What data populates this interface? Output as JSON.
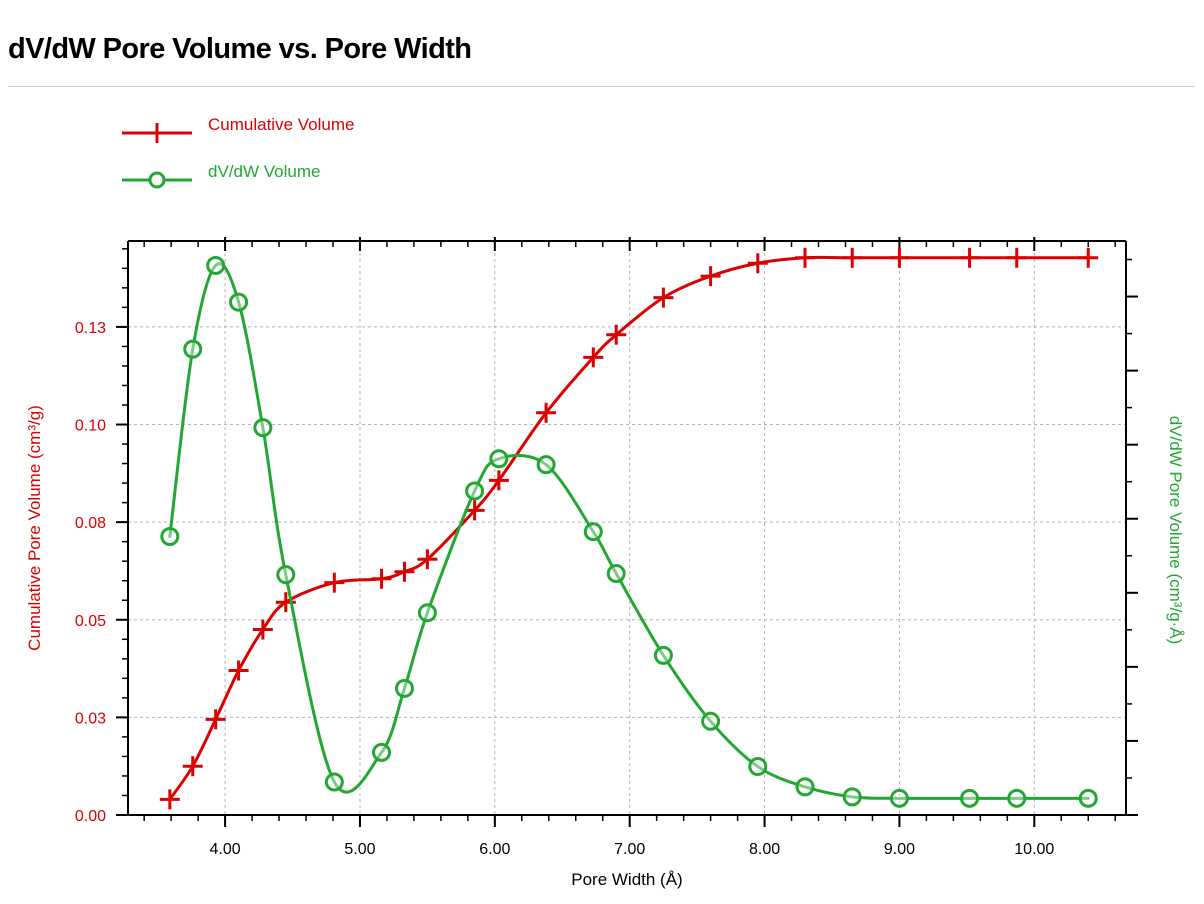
{
  "page": {
    "title": "dV/dW Pore Volume vs. Pore Width"
  },
  "chart_data": {
    "type": "line",
    "title": "dV/dW Pore Volume vs. Pore Width",
    "xlabel": "Pore Width (Å)",
    "ylabel_left": "Cumulative Pore Volume (cm³/g)",
    "ylabel_right": "dV/dW Pore Volume (cm³/g·Å)",
    "xlim": [
      3.28,
      10.68
    ],
    "ylim_left": [
      0.0,
      0.147
    ],
    "ylim_right": [
      0.0,
      0.155
    ],
    "grid": true,
    "legend_position": "top-left",
    "x_ticks": [
      "4.00",
      "5.00",
      "6.00",
      "7.00",
      "8.00",
      "9.00",
      "10.00"
    ],
    "x_tick_values": [
      4,
      5,
      6,
      7,
      8,
      9,
      10
    ],
    "y_left_ticks": [
      "0.00",
      "0.03",
      "0.05",
      "0.08",
      "0.10",
      "0.13"
    ],
    "y_left_tick_values": [
      0.0,
      0.025,
      0.05,
      0.075,
      0.1,
      0.125
    ],
    "colors": {
      "cumulative": "#dd0000",
      "dvdw": "#22a832",
      "grid": "#b4b4b4",
      "axis": "#000000"
    },
    "series": [
      {
        "name": "Cumulative Volume",
        "axis": "left",
        "marker": "plus",
        "x": [
          3.59,
          3.76,
          3.93,
          4.1,
          4.28,
          4.45,
          4.81,
          5.16,
          5.33,
          5.5,
          5.85,
          6.03,
          6.38,
          6.73,
          6.9,
          7.25,
          7.6,
          7.95,
          8.3,
          8.65,
          9.0,
          9.52,
          9.87,
          10.4
        ],
        "y": [
          0.004,
          0.0125,
          0.0245,
          0.037,
          0.0475,
          0.0545,
          0.0595,
          0.0605,
          0.0623,
          0.0655,
          0.078,
          0.0857,
          0.103,
          0.1172,
          0.123,
          0.1325,
          0.138,
          0.1413,
          0.1427,
          0.1427,
          0.1427,
          0.1427,
          0.1427,
          0.1427
        ]
      },
      {
        "name": "dV/dW Volume",
        "axis": "right",
        "marker": "circle",
        "x": [
          3.59,
          3.76,
          3.93,
          4.1,
          4.28,
          4.45,
          4.81,
          5.16,
          5.33,
          5.5,
          5.85,
          6.03,
          6.38,
          6.73,
          6.9,
          7.25,
          7.6,
          7.95,
          8.3,
          8.65,
          9.0,
          9.52,
          9.87,
          10.4
        ],
        "y": [
          0.0752,
          0.1258,
          0.1484,
          0.1385,
          0.1046,
          0.0649,
          0.0089,
          0.0169,
          0.0342,
          0.0546,
          0.0875,
          0.0962,
          0.0946,
          0.0765,
          0.0652,
          0.0431,
          0.0253,
          0.0131,
          0.0076,
          0.0049,
          0.0045,
          0.0045,
          0.0045,
          0.0045
        ]
      }
    ]
  }
}
